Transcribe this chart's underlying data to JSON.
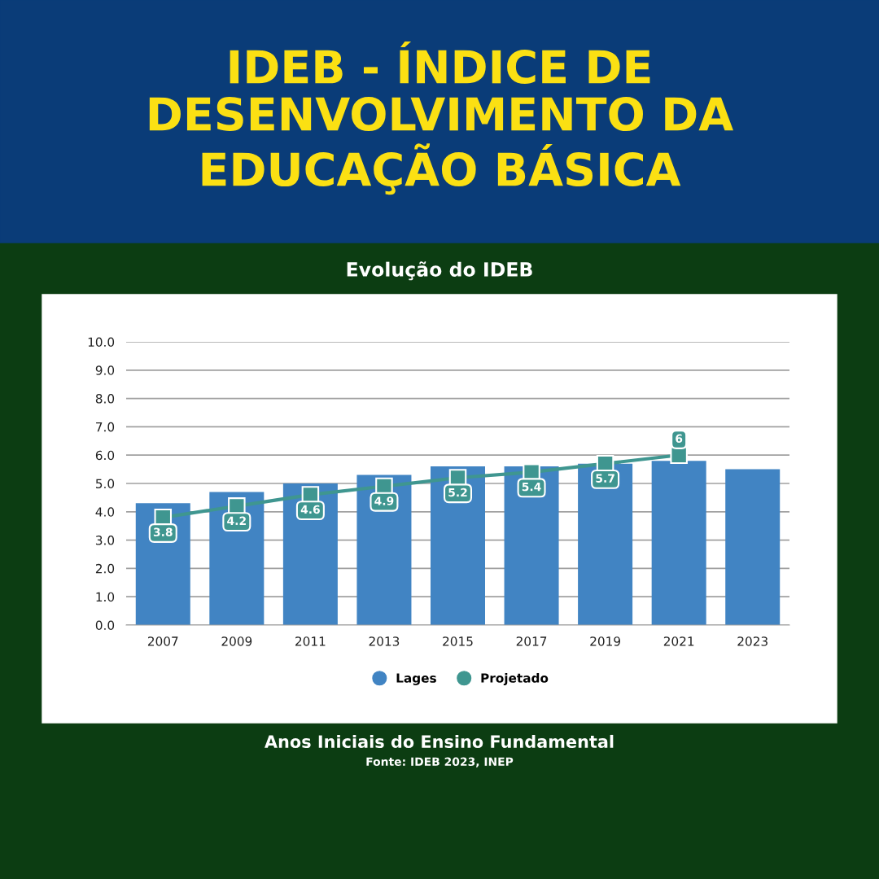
{
  "chart_data": {
    "type": "bar",
    "title": "IDEB - ÍNDICE DE DESENVOLVIMENTO DA EDUCAÇÃO BÁSICA",
    "subtitle": "Evolução do IDEB",
    "categories": [
      "2007",
      "2009",
      "2011",
      "2013",
      "2015",
      "2017",
      "2019",
      "2021",
      "2023"
    ],
    "series": [
      {
        "name": "Lages",
        "color": "#4184c3",
        "values": [
          4.3,
          4.7,
          5.0,
          5.3,
          5.6,
          5.6,
          5.7,
          5.8,
          5.5
        ]
      },
      {
        "name": "Projetado",
        "type": "line",
        "marker": "square",
        "color": "#3f9690",
        "values": [
          3.8,
          4.2,
          4.6,
          4.9,
          5.2,
          5.4,
          5.7,
          6,
          null
        ],
        "value_labels": [
          "3.8",
          "4.2",
          "4.6",
          "4.9",
          "5.2",
          "5.4",
          "5.7",
          "6",
          null
        ]
      }
    ],
    "ylim": [
      0,
      10
    ],
    "yticks": [
      {
        "value": 0,
        "label": "0.0"
      },
      {
        "value": 1,
        "label": "1.0"
      },
      {
        "value": 2,
        "label": "2.0"
      },
      {
        "value": 3,
        "label": "3.0"
      },
      {
        "value": 4,
        "label": "4.0"
      },
      {
        "value": 5,
        "label": "5.0"
      },
      {
        "value": 6,
        "label": "6.0"
      },
      {
        "value": 7,
        "label": "7.0"
      },
      {
        "value": 8,
        "label": "8.0"
      },
      {
        "value": 9,
        "label": "9.0"
      },
      {
        "value": 10,
        "label": "10.0"
      }
    ],
    "grid": "y",
    "legend": "bottom",
    "annotations": [
      "Anos Iniciais do Ensino Fundamental",
      "Fonte: IDEB 2023, INEP"
    ]
  }
}
